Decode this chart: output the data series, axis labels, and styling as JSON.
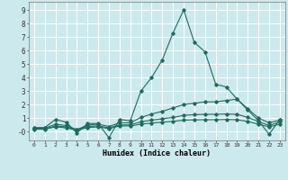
{
  "title": "",
  "xlabel": "Humidex (Indice chaleur)",
  "xlim": [
    -0.5,
    23.5
  ],
  "ylim": [
    -0.65,
    9.6
  ],
  "xticks": [
    0,
    1,
    2,
    3,
    4,
    5,
    6,
    7,
    8,
    9,
    10,
    11,
    12,
    13,
    14,
    15,
    16,
    17,
    18,
    19,
    20,
    21,
    22,
    23
  ],
  "yticks": [
    0,
    1,
    2,
    3,
    4,
    5,
    6,
    7,
    8,
    9
  ],
  "ytick_labels": [
    "-0",
    "1",
    "2",
    "3",
    "4",
    "5",
    "6",
    "7",
    "8",
    "9"
  ],
  "background_color": "#cce9ed",
  "grid_color": "#ffffff",
  "line_color": "#1e6b5e",
  "series": [
    {
      "x": [
        0,
        1,
        2,
        3,
        4,
        5,
        6,
        7,
        8,
        9,
        10,
        11,
        12,
        13,
        14,
        15,
        16,
        17,
        18,
        19,
        20,
        21,
        22,
        23
      ],
      "y": [
        0.3,
        0.3,
        0.9,
        0.7,
        -0.1,
        0.6,
        0.6,
        -0.45,
        0.9,
        0.8,
        3.0,
        4.0,
        5.3,
        7.3,
        9.0,
        6.6,
        5.9,
        3.5,
        3.3,
        2.4,
        1.6,
        0.8,
        -0.2,
        0.9
      ]
    },
    {
      "x": [
        0,
        1,
        2,
        3,
        4,
        5,
        6,
        7,
        8,
        9,
        10,
        11,
        12,
        13,
        14,
        15,
        16,
        17,
        18,
        19,
        20,
        21,
        22,
        23
      ],
      "y": [
        0.25,
        0.25,
        0.55,
        0.45,
        0.15,
        0.48,
        0.55,
        0.38,
        0.65,
        0.65,
        1.05,
        1.3,
        1.5,
        1.75,
        2.0,
        2.1,
        2.2,
        2.2,
        2.3,
        2.4,
        1.7,
        1.0,
        0.65,
        0.85
      ]
    },
    {
      "x": [
        0,
        1,
        2,
        3,
        4,
        5,
        6,
        7,
        8,
        9,
        10,
        11,
        12,
        13,
        14,
        15,
        16,
        17,
        18,
        19,
        20,
        21,
        22,
        23
      ],
      "y": [
        0.2,
        0.2,
        0.42,
        0.35,
        0.12,
        0.38,
        0.42,
        0.28,
        0.5,
        0.5,
        0.72,
        0.85,
        0.95,
        1.05,
        1.2,
        1.25,
        1.28,
        1.28,
        1.3,
        1.28,
        1.05,
        0.75,
        0.45,
        0.72
      ]
    },
    {
      "x": [
        0,
        1,
        2,
        3,
        4,
        5,
        6,
        7,
        8,
        9,
        10,
        11,
        12,
        13,
        14,
        15,
        16,
        17,
        18,
        19,
        20,
        21,
        22,
        23
      ],
      "y": [
        0.18,
        0.18,
        0.35,
        0.28,
        0.1,
        0.3,
        0.35,
        0.22,
        0.42,
        0.42,
        0.55,
        0.63,
        0.7,
        0.75,
        0.85,
        0.87,
        0.88,
        0.88,
        0.9,
        0.88,
        0.75,
        0.55,
        0.35,
        0.55
      ]
    }
  ]
}
